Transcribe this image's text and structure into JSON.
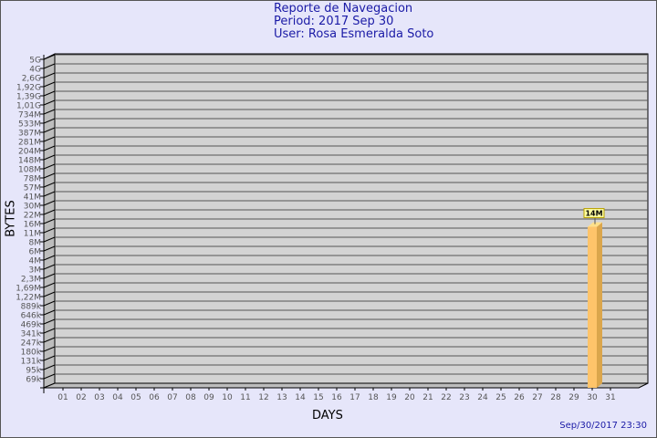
{
  "header": {
    "title": "Reporte de Navegacion",
    "period": "Period: 2017 Sep 30",
    "user": "User: Rosa Esmeralda Soto"
  },
  "footer": {
    "timestamp": "Sep/30/2017 23:30"
  },
  "chart_data": {
    "type": "bar",
    "title": "Reporte de Navegacion",
    "xlabel": "DAYS",
    "ylabel": "BYTES",
    "y_scale": "log",
    "grid": true,
    "y_ticks": [
      "5G",
      "4G",
      "2,6G",
      "1,92G",
      "1,39G",
      "1,01G",
      "734M",
      "533M",
      "387M",
      "281M",
      "204M",
      "148M",
      "108M",
      "78M",
      "57M",
      "41M",
      "30M",
      "22M",
      "16M",
      "11M",
      "8M",
      "6M",
      "4M",
      "3M",
      "2,3M",
      "1,69M",
      "1,22M",
      "889k",
      "646k",
      "469k",
      "341k",
      "247k",
      "180k",
      "131k",
      "95k",
      "69k"
    ],
    "categories": [
      "01",
      "02",
      "03",
      "04",
      "05",
      "06",
      "07",
      "08",
      "09",
      "10",
      "11",
      "12",
      "13",
      "14",
      "15",
      "16",
      "17",
      "18",
      "19",
      "20",
      "21",
      "22",
      "23",
      "24",
      "25",
      "26",
      "27",
      "28",
      "29",
      "30",
      "31"
    ],
    "values": [
      null,
      null,
      null,
      null,
      null,
      null,
      null,
      null,
      null,
      null,
      null,
      null,
      null,
      null,
      null,
      null,
      null,
      null,
      null,
      null,
      null,
      null,
      null,
      null,
      null,
      null,
      null,
      null,
      null,
      14000000,
      null
    ],
    "data_labels": {
      "30": "14M"
    },
    "colors": {
      "bar_front": "#ffc46a",
      "bar_side": "#dba64c",
      "wall": "#d3d3d3",
      "background": "#e6e6fa",
      "label_box": "#ffffa0"
    }
  }
}
